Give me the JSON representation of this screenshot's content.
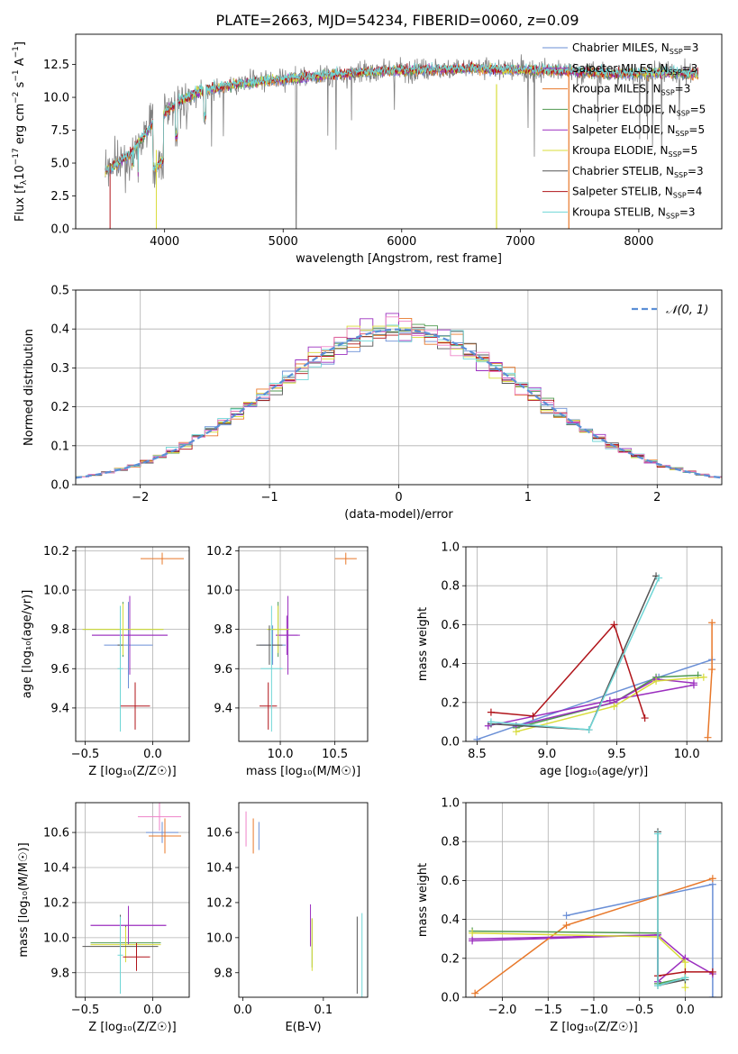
{
  "page": {
    "title": "PLATE=2663, MJD=54234, FIBERID=0060, z=0.09"
  },
  "model_colors": {
    "Chabrier MILES": "#6a8fd6",
    "Salpeter MILES": "#9b2fbf",
    "Kroupa MILES": "#e8782a",
    "Chabrier ELODIE": "#4f9a4f",
    "Salpeter ELODIE": "#9b2fbf",
    "Kroupa ELODIE": "#d8dc3a",
    "Chabrier STELIB": "#555555",
    "Salpeter STELIB": "#b0141a",
    "Kroupa STELIB": "#6fd6d6"
  },
  "chart_data": [
    {
      "id": "spectrum",
      "type": "line",
      "title": "PLATE=2663, MJD=54234, FIBERID=0060, z=0.09",
      "xlabel": "wavelength [Angstrom, rest frame]",
      "ylabel_parts": {
        "a": "Flux [f",
        "b": "λ",
        "c": "10",
        "d": "−17",
        "e": " erg cm",
        "f": "−2",
        "g": " s",
        "h": "−1",
        "i": " A",
        "j": "−1",
        "k": "]"
      },
      "xlim": [
        3250,
        8700
      ],
      "ylim": [
        0,
        14.8
      ],
      "xticks": [
        4000,
        5000,
        6000,
        7000,
        8000
      ],
      "yticks": [
        0.0,
        2.5,
        5.0,
        7.5,
        10.0,
        12.5
      ],
      "continuum": [
        [
          3500,
          4.4
        ],
        [
          3700,
          5.6
        ],
        [
          3900,
          8.0
        ],
        [
          4100,
          9.6
        ],
        [
          4300,
          10.5
        ],
        [
          4600,
          11.0
        ],
        [
          5000,
          11.4
        ],
        [
          5400,
          11.7
        ],
        [
          5800,
          12.0
        ],
        [
          6200,
          12.1
        ],
        [
          6600,
          12.2
        ],
        [
          7000,
          12.1
        ],
        [
          7400,
          12.0
        ],
        [
          7800,
          11.8
        ],
        [
          8200,
          11.9
        ],
        [
          8500,
          11.8
        ]
      ],
      "series": [
        {
          "name": "Chabrier MILES",
          "nssp": "3"
        },
        {
          "name": "Salpeter MILES",
          "nssp": "3"
        },
        {
          "name": "Kroupa MILES",
          "nssp": "3"
        },
        {
          "name": "Chabrier ELODIE",
          "nssp": "5"
        },
        {
          "name": "Salpeter ELODIE",
          "nssp": "5"
        },
        {
          "name": "Kroupa ELODIE",
          "nssp": "5"
        },
        {
          "name": "Chabrier STELIB",
          "nssp": "3"
        },
        {
          "name": "Salpeter STELIB",
          "nssp": "4"
        },
        {
          "name": "Kroupa STELIB",
          "nssp": "3"
        }
      ],
      "legend_placement": "right",
      "grid": false
    },
    {
      "id": "residuals",
      "type": "histogram",
      "xlabel": "(data-model)/error",
      "ylabel": "Normed distribution",
      "xlim": [
        -2.5,
        2.5
      ],
      "ylim": [
        0,
        0.5
      ],
      "xticks": [
        -2,
        -1,
        0,
        1,
        2
      ],
      "yticks": [
        0.0,
        0.1,
        0.2,
        0.3,
        0.4,
        0.5
      ],
      "bin_width": 0.1,
      "reference_label": "𝒩(0, 1)",
      "legend_placement": "top-right",
      "grid": true
    },
    {
      "id": "z-age",
      "type": "errorbar",
      "xlabel": "Z [log₁₀(Z/Z☉)]",
      "ylabel": "age  [log₁₀(age/yr)]",
      "xlim": [
        -0.57,
        0.27
      ],
      "ylim": [
        9.23,
        10.22
      ],
      "xticks": [
        -0.5,
        0.0
      ],
      "yticks": [
        9.4,
        9.6,
        9.8,
        10.0,
        10.2
      ],
      "grid": true,
      "points": [
        {
          "model": "Chabrier MILES",
          "x": -0.18,
          "xerr": 0.18,
          "y": 9.72,
          "yerr": 0.22
        },
        {
          "model": "Salpeter MILES",
          "x": -0.17,
          "xerr": 0.28,
          "y": 9.77,
          "yerr": 0.2
        },
        {
          "model": "Kroupa MILES",
          "x": 0.07,
          "xerr": 0.16,
          "y": 10.16,
          "yerr": 0.03
        },
        {
          "model": "Chabrier ELODIE",
          "x": -0.22,
          "xerr": 0.3,
          "y": 9.8,
          "yerr": 0.14
        },
        {
          "model": "Salpeter ELODIE",
          "x": -0.17,
          "xerr": 0.28,
          "y": 9.77,
          "yerr": 0.16
        },
        {
          "model": "Kroupa ELODIE",
          "x": -0.22,
          "xerr": 0.3,
          "y": 9.8,
          "yerr": 0.13
        },
        {
          "model": "Chabrier STELIB",
          "x": -0.24,
          "xerr": 0.02,
          "y": 9.72,
          "yerr": 0.2
        },
        {
          "model": "Salpeter STELIB",
          "x": -0.13,
          "xerr": 0.11,
          "y": 9.41,
          "yerr": 0.12
        },
        {
          "model": "Kroupa STELIB",
          "x": -0.24,
          "xerr": 0.02,
          "y": 9.6,
          "yerr": 0.32
        }
      ]
    },
    {
      "id": "mass-age",
      "type": "errorbar",
      "xlabel": "mass [log₁₀(M/M☉)]",
      "ylabel": "",
      "xlim": [
        9.62,
        10.8
      ],
      "ylim": [
        9.23,
        10.22
      ],
      "xticks": [
        10.0,
        10.5
      ],
      "yticks": [
        9.4,
        9.6,
        9.8,
        10.0,
        10.2
      ],
      "grid": true,
      "points": [
        {
          "model": "Chabrier MILES",
          "x": 9.93,
          "xerr": 0.12,
          "y": 9.72,
          "yerr": 0.1
        },
        {
          "model": "Salpeter MILES",
          "x": 10.06,
          "xerr": 0.1,
          "y": 9.77,
          "yerr": 0.1
        },
        {
          "model": "Kroupa MILES",
          "x": 10.6,
          "xerr": 0.1,
          "y": 10.16,
          "yerr": 0.03
        },
        {
          "model": "Chabrier ELODIE",
          "x": 9.98,
          "xerr": 0.1,
          "y": 9.8,
          "yerr": 0.14
        },
        {
          "model": "Salpeter ELODIE",
          "x": 10.07,
          "xerr": 0.11,
          "y": 9.77,
          "yerr": 0.2
        },
        {
          "model": "Kroupa ELODIE",
          "x": 9.98,
          "xerr": 0.1,
          "y": 9.8,
          "yerr": 0.12
        },
        {
          "model": "Chabrier STELIB",
          "x": 9.9,
          "xerr": 0.12,
          "y": 9.72,
          "yerr": 0.1
        },
        {
          "model": "Salpeter STELIB",
          "x": 9.89,
          "xerr": 0.08,
          "y": 9.41,
          "yerr": 0.12
        },
        {
          "model": "Kroupa STELIB",
          "x": 9.92,
          "xerr": 0.1,
          "y": 9.6,
          "yerr": 0.32
        }
      ]
    },
    {
      "id": "age-weight",
      "type": "line",
      "xlabel": "age  [log₁₀(age/yr)]",
      "ylabel": "mass weight",
      "xlim": [
        8.42,
        10.25
      ],
      "ylim": [
        0,
        1.0
      ],
      "xticks": [
        8.5,
        9.0,
        9.5,
        10.0
      ],
      "yticks": [
        0.0,
        0.2,
        0.4,
        0.6,
        0.8,
        1.0
      ],
      "grid": true,
      "series": [
        {
          "name": "Chabrier MILES",
          "x": [
            8.5,
            9.8,
            10.18
          ],
          "y": [
            0.01,
            0.33,
            0.42
          ]
        },
        {
          "name": "Salpeter MILES",
          "x": [
            8.58,
            9.45,
            10.05
          ],
          "y": [
            0.08,
            0.21,
            0.29
          ]
        },
        {
          "name": "Kroupa MILES",
          "x": [
            10.15,
            10.18,
            10.18
          ],
          "y": [
            0.02,
            0.37,
            0.61
          ]
        },
        {
          "name": "Chabrier ELODIE",
          "x": [
            8.78,
            9.48,
            9.78,
            10.08
          ],
          "y": [
            0.07,
            0.2,
            0.33,
            0.34
          ]
        },
        {
          "name": "Salpeter ELODIE",
          "x": [
            8.78,
            9.48,
            9.78,
            10.05
          ],
          "y": [
            0.08,
            0.2,
            0.32,
            0.3
          ]
        },
        {
          "name": "Kroupa ELODIE",
          "x": [
            8.78,
            9.48,
            9.78,
            10.12
          ],
          "y": [
            0.05,
            0.18,
            0.31,
            0.33
          ]
        },
        {
          "name": "Chabrier STELIB",
          "x": [
            8.6,
            9.3,
            9.78
          ],
          "y": [
            0.09,
            0.06,
            0.85
          ]
        },
        {
          "name": "Salpeter STELIB",
          "x": [
            8.6,
            8.9,
            9.48,
            9.7
          ],
          "y": [
            0.15,
            0.13,
            0.6,
            0.12
          ]
        },
        {
          "name": "Kroupa STELIB",
          "x": [
            8.6,
            9.3,
            9.8
          ],
          "y": [
            0.1,
            0.06,
            0.84
          ]
        }
      ]
    },
    {
      "id": "z-mass",
      "type": "errorbar",
      "xlabel": "Z [log₁₀(Z/Z☉)]",
      "ylabel": "mass [log₁₀(M/M☉)]",
      "xlim": [
        -0.57,
        0.27
      ],
      "ylim": [
        9.66,
        10.77
      ],
      "xticks": [
        -0.5,
        0.0
      ],
      "yticks": [
        9.8,
        10.0,
        10.2,
        10.4,
        10.6
      ],
      "grid": true,
      "points": [
        {
          "model": "Chabrier MILES",
          "x": 0.07,
          "xerr": 0.12,
          "y": 10.6,
          "yerr": 0.06
        },
        {
          "model": "Salpeter MILES",
          "x": -0.18,
          "xerr": 0.28,
          "y": 10.07,
          "yerr": 0.11
        },
        {
          "model": "Kroupa MILES",
          "x": 0.09,
          "xerr": 0.12,
          "y": 10.58,
          "yerr": 0.1
        },
        {
          "model": "Chabrier ELODIE",
          "x": -0.2,
          "xerr": 0.26,
          "y": 9.97,
          "yerr": 0.1
        },
        {
          "model": "Salpeter ELODIE",
          "x": -0.18,
          "xerr": 0.28,
          "y": 10.07,
          "yerr": 0.11
        },
        {
          "model": "Kroupa ELODIE",
          "x": -0.2,
          "xerr": 0.26,
          "y": 9.96,
          "yerr": 0.1
        },
        {
          "model": "Chabrier STELIB",
          "x": -0.24,
          "xerr": 0.28,
          "y": 9.95,
          "yerr": 0.18
        },
        {
          "model": "Salpeter STELIB",
          "x": -0.12,
          "xerr": 0.1,
          "y": 9.89,
          "yerr": 0.08
        },
        {
          "model": "Kroupa STELIB",
          "x": -0.24,
          "xerr": 0.02,
          "y": 9.9,
          "yerr": 0.22
        },
        {
          "model": "extra",
          "x": 0.05,
          "xerr": 0.16,
          "y": 10.69,
          "yerr": 0.08
        }
      ]
    },
    {
      "id": "ebv-mass",
      "type": "errorbar",
      "xlabel": "E(B-V)",
      "ylabel": "",
      "xlim": [
        -0.005,
        0.155
      ],
      "ylim": [
        9.66,
        10.77
      ],
      "xticks": [
        0.0,
        0.1
      ],
      "yticks": [
        9.8,
        10.0,
        10.2,
        10.4,
        10.6
      ],
      "grid": false,
      "points": [
        {
          "model": "Chabrier MILES",
          "x": 0.02,
          "y": 10.58,
          "yerr": 0.08
        },
        {
          "model": "Kroupa MILES",
          "x": 0.013,
          "y": 10.58,
          "yerr": 0.1
        },
        {
          "model": "Salpeter ELODIE",
          "x": 0.084,
          "y": 10.07,
          "yerr": 0.12
        },
        {
          "model": "Chabrier ELODIE",
          "x": 0.086,
          "y": 9.97,
          "yerr": 0.14
        },
        {
          "model": "Kroupa ELODIE",
          "x": 0.086,
          "y": 9.96,
          "yerr": 0.15
        },
        {
          "model": "Chabrier STELIB",
          "x": 0.142,
          "y": 9.9,
          "yerr": 0.22
        },
        {
          "model": "Kroupa STELIB",
          "x": 0.148,
          "y": 9.9,
          "yerr": 0.24
        },
        {
          "model": "extra",
          "x": 0.004,
          "y": 10.62,
          "yerr": 0.1
        }
      ]
    },
    {
      "id": "z-weight",
      "type": "line",
      "xlabel": "Z [log₁₀(Z/Z☉)]",
      "ylabel": "mass weight",
      "xlim": [
        -2.4,
        0.4
      ],
      "ylim": [
        0,
        1.0
      ],
      "xticks": [
        -2.0,
        -1.5,
        -1.0,
        -0.5,
        0.0
      ],
      "yticks": [
        0.0,
        0.2,
        0.4,
        0.6,
        0.8,
        1.0
      ],
      "grid": true,
      "series": [
        {
          "name": "Chabrier MILES",
          "x": [
            -1.3,
            0.3,
            0.3
          ],
          "y": [
            0.42,
            0.58,
            0.0
          ]
        },
        {
          "name": "Salpeter MILES",
          "x": [
            -2.33,
            -0.3,
            0.0,
            0.3
          ],
          "y": [
            0.29,
            0.32,
            0.2,
            0.12
          ]
        },
        {
          "name": "Kroupa MILES",
          "x": [
            -2.3,
            -1.3,
            0.3
          ],
          "y": [
            0.02,
            0.37,
            0.61
          ]
        },
        {
          "name": "Chabrier ELODIE",
          "x": [
            -2.33,
            -0.3,
            -0.3,
            0.0
          ],
          "y": [
            0.34,
            0.33,
            0.07,
            0.1
          ]
        },
        {
          "name": "Salpeter ELODIE",
          "x": [
            -2.33,
            -0.3,
            -0.3,
            0.0
          ],
          "y": [
            0.3,
            0.32,
            0.08,
            0.2
          ]
        },
        {
          "name": "Kroupa ELODIE",
          "x": [
            -2.33,
            -0.3,
            0.0,
            0.0
          ],
          "y": [
            0.33,
            0.31,
            0.18,
            0.05
          ]
        },
        {
          "name": "Chabrier STELIB",
          "x": [
            -0.3,
            -0.3,
            0.0
          ],
          "y": [
            0.85,
            0.06,
            0.09
          ]
        },
        {
          "name": "Salpeter STELIB",
          "x": [
            -0.3,
            0.0,
            0.3
          ],
          "y": [
            0.11,
            0.13,
            0.13
          ]
        },
        {
          "name": "Kroupa STELIB",
          "x": [
            -0.3,
            -0.3,
            0.0
          ],
          "y": [
            0.84,
            0.06,
            0.1
          ]
        }
      ]
    }
  ]
}
